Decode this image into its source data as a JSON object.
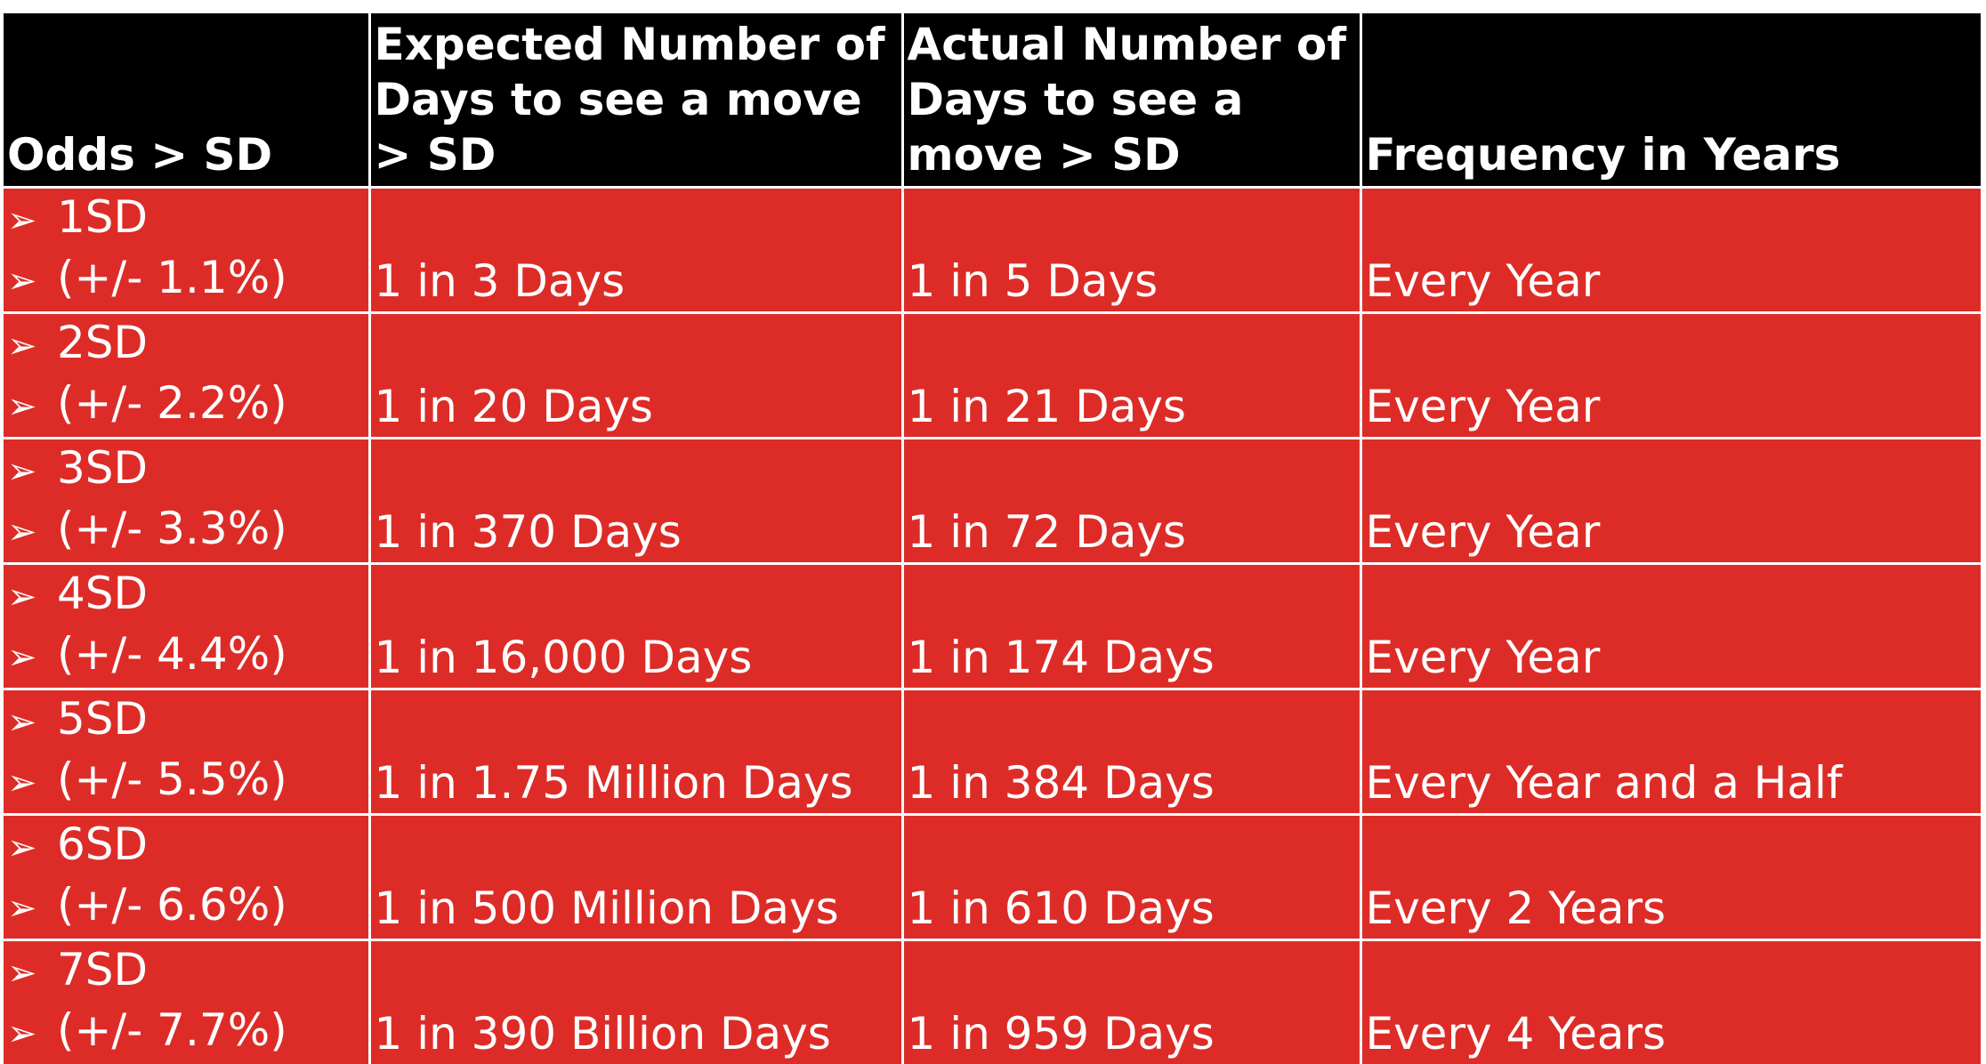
{
  "chart_data": {
    "type": "table",
    "columns": [
      "Odds > SD",
      "Expected Number of Days to see a move > SD",
      "Actual Number of Days to see a move > SD",
      "Frequency in Years"
    ],
    "bullet_glyph": "➢",
    "rows": [
      {
        "sd": "1SD",
        "range": "(+/- 1.1%)",
        "expected": "1 in 3 Days",
        "actual": "1 in 5 Days",
        "frequency": "Every Year"
      },
      {
        "sd": "2SD",
        "range": "(+/- 2.2%)",
        "expected": "1 in 20 Days",
        "actual": "1 in 21 Days",
        "frequency": "Every Year"
      },
      {
        "sd": "3SD",
        "range": "(+/- 3.3%)",
        "expected": "1 in 370 Days",
        "actual": "1 in 72 Days",
        "frequency": "Every Year"
      },
      {
        "sd": "4SD",
        "range": "(+/- 4.4%)",
        "expected": "1 in 16,000 Days",
        "actual": "1 in 174 Days",
        "frequency": "Every Year"
      },
      {
        "sd": "5SD",
        "range": "(+/- 5.5%)",
        "expected": "1 in 1.75 Million Days",
        "actual": "1 in 384 Days",
        "frequency": "Every Year and a Half"
      },
      {
        "sd": "6SD",
        "range": "(+/- 6.6%)",
        "expected": "1 in 500 Million Days",
        "actual": "1 in 610 Days",
        "frequency": "Every 2 Years"
      },
      {
        "sd": "7SD",
        "range": "(+/- 7.7%)",
        "expected": "1 in 390 Billion Days",
        "actual": "1 in 959 Days",
        "frequency": "Every 4 Years"
      }
    ]
  },
  "colors": {
    "header_background": "#000000",
    "row_background": "#dd2c27",
    "text": "#ffffff",
    "grid_lines": "#ffffff"
  }
}
